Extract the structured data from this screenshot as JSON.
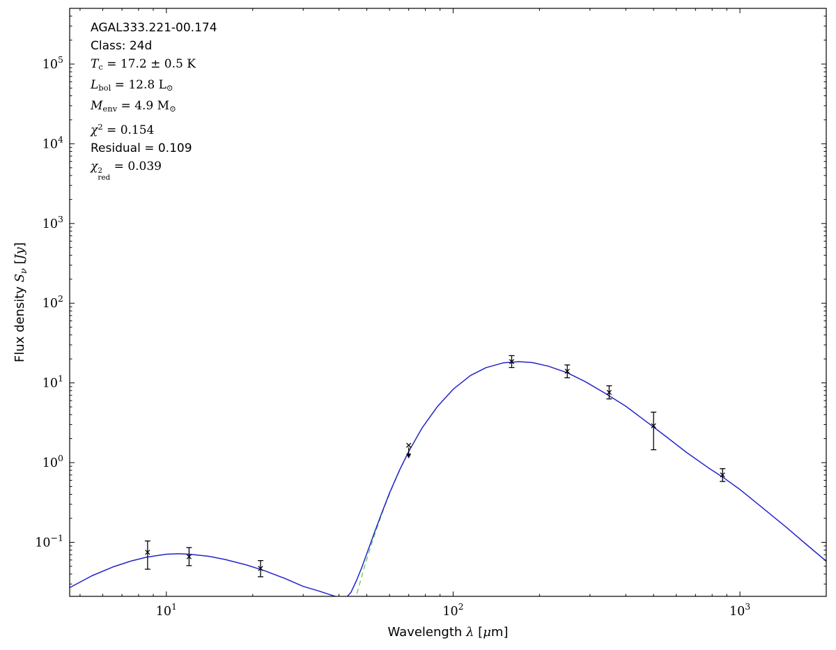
{
  "figure": {
    "background": "#ffffff",
    "frame_color": "#000000"
  },
  "annotations": {
    "lines": [
      {
        "font": "sans",
        "segments": [
          {
            "t": "AGAL333.221-00.174"
          }
        ]
      },
      {
        "font": "sans",
        "segments": [
          {
            "t": "Class: 24d"
          }
        ]
      },
      {
        "font": "serif",
        "segments": [
          {
            "t": "T",
            "s": "it"
          },
          {
            "t": "c",
            "s": "sub"
          },
          {
            "t": " = 17.2 ± 0.5 K"
          }
        ]
      },
      {
        "font": "serif",
        "segments": [
          {
            "t": "L",
            "s": "it"
          },
          {
            "t": "bol",
            "s": "sub"
          },
          {
            "t": " = 12.8 "
          },
          {
            "t": "L"
          },
          {
            "t": "⊙",
            "s": "sub"
          }
        ]
      },
      {
        "font": "serif",
        "segments": [
          {
            "t": "M",
            "s": "it"
          },
          {
            "t": "env",
            "s": "sub"
          },
          {
            "t": " = 4.9 "
          },
          {
            "t": "M"
          },
          {
            "t": "⊙",
            "s": "sub"
          }
        ]
      },
      {
        "font": "serif",
        "segments": [
          {
            "t": "χ",
            "s": "it"
          },
          {
            "t": "2",
            "s": "sup"
          },
          {
            "t": " = 0.154"
          }
        ]
      },
      {
        "font": "sans",
        "segments": [
          {
            "t": "Residual = 0.109"
          }
        ]
      },
      {
        "font": "serif",
        "segments": [
          {
            "t": "χ",
            "s": "it"
          },
          {
            "s": "stack",
            "sup": "2",
            "sub": "red"
          },
          {
            "t": " = 0.039"
          }
        ]
      }
    ]
  },
  "chart_data": {
    "type": "line",
    "title": "",
    "xlabel": "Wavelength λ [μm]",
    "ylabel": "Flux density Sν [Jy]",
    "xlabel_parts": [
      {
        "t": "Wavelength "
      },
      {
        "t": "λ",
        "i": 1,
        "serif": 1
      },
      {
        "t": " ["
      },
      {
        "t": "μ",
        "i": 1,
        "serif": 1
      },
      {
        "t": "m]"
      }
    ],
    "ylabel_parts": [
      {
        "t": "Flux density "
      },
      {
        "t": "S",
        "i": 1,
        "serif": 1
      },
      {
        "t": "ν",
        "i": 1,
        "serif": 1,
        "sub": 1
      },
      {
        "t": " ["
      },
      {
        "t": "Jy",
        "i": 1,
        "serif": 1
      },
      {
        "t": "]"
      }
    ],
    "x_scale": "log",
    "y_scale": "log",
    "xlim": [
      4.6,
      2000
    ],
    "ylim": [
      0.021,
      500000
    ],
    "tick_base": "10",
    "x_tick_exponents": [
      1,
      2,
      3
    ],
    "y_tick_exponents": [
      -1,
      0,
      1,
      2,
      3,
      4,
      5
    ],
    "grid": false,
    "legend": "none",
    "marker_color": "#000000",
    "series": [
      {
        "name": "model-total",
        "color": "#2222cc",
        "style": "solid",
        "width": 1.5,
        "x": [
          4.6,
          5.5,
          6.5,
          7.5,
          8.5,
          10,
          11,
          12,
          14,
          16,
          19,
          22,
          26,
          30,
          34,
          38,
          40,
          42,
          44,
          46,
          48,
          50,
          53,
          56,
          60,
          65,
          70,
          78,
          88,
          100,
          115,
          130,
          150,
          170,
          190,
          215,
          250,
          290,
          340,
          400,
          470,
          550,
          650,
          780,
          870,
          1000,
          1200,
          1450,
          1700,
          2000
        ],
        "y": [
          0.027,
          0.038,
          0.049,
          0.058,
          0.065,
          0.071,
          0.072,
          0.071,
          0.067,
          0.061,
          0.052,
          0.044,
          0.035,
          0.028,
          0.0245,
          0.0215,
          0.0203,
          0.0196,
          0.0235,
          0.033,
          0.048,
          0.072,
          0.129,
          0.219,
          0.415,
          0.8,
          1.38,
          2.73,
          5.02,
          8.33,
          12.4,
          15.5,
          17.9,
          18.5,
          17.95,
          16.2,
          13.4,
          10.3,
          7.36,
          5.1,
          3.3,
          2.15,
          1.35,
          0.85,
          0.66,
          0.46,
          0.27,
          0.155,
          0.095,
          0.058
        ]
      },
      {
        "name": "cold-greybody-component",
        "color": "#55cc55",
        "style": "dashed",
        "width": 1.3,
        "x": [
          43,
          46,
          49,
          52,
          55,
          58,
          62,
          66,
          70
        ],
        "y": [
          0.009,
          0.0216,
          0.0487,
          0.097,
          0.176,
          0.298,
          0.54,
          0.9,
          1.374
        ]
      }
    ],
    "points": [
      {
        "x": 8.6,
        "y": 0.075,
        "ylo": 0.046,
        "yhi": 0.104
      },
      {
        "x": 12,
        "y": 0.066,
        "ylo": 0.051,
        "yhi": 0.086
      },
      {
        "x": 21.3,
        "y": 0.047,
        "ylo": 0.037,
        "yhi": 0.059
      },
      {
        "x": 70,
        "y": 1.65,
        "upper_limit": true
      },
      {
        "x": 160,
        "y": 18.5,
        "ylo": 15.6,
        "yhi": 22.0
      },
      {
        "x": 250,
        "y": 14.0,
        "ylo": 11.6,
        "yhi": 16.8
      },
      {
        "x": 350,
        "y": 7.6,
        "ylo": 6.3,
        "yhi": 9.2
      },
      {
        "x": 500,
        "y": 2.9,
        "ylo": 1.45,
        "yhi": 4.3
      },
      {
        "x": 870,
        "y": 0.7,
        "ylo": 0.58,
        "yhi": 0.84
      }
    ]
  }
}
